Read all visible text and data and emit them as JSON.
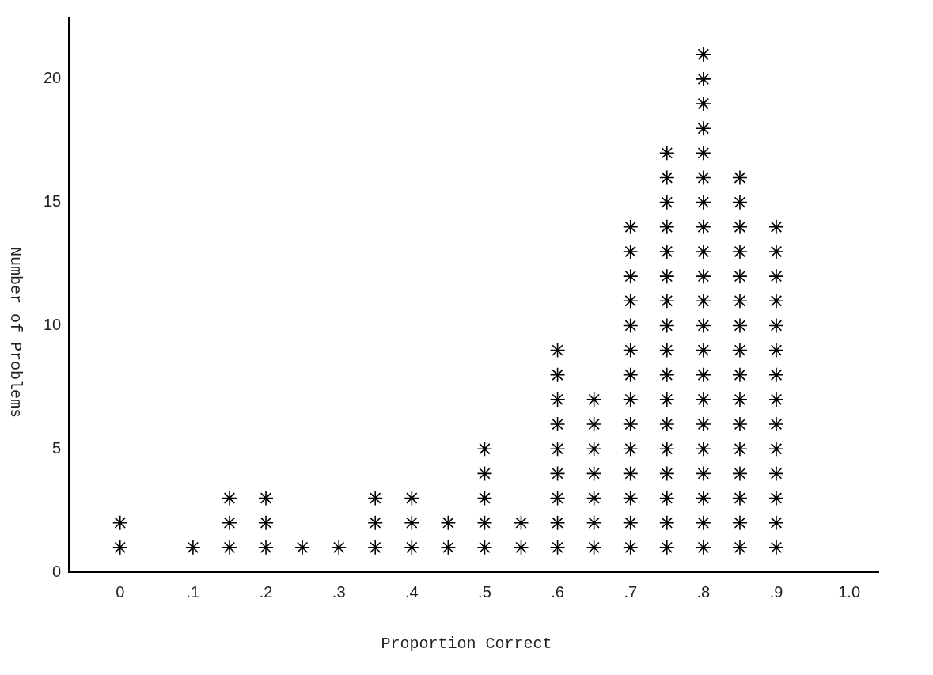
{
  "chart_data": {
    "type": "scatter",
    "xlabel": "Proportion Correct",
    "ylabel": "Number of Problems",
    "x": [
      0,
      0,
      0.1,
      0.15,
      0.15,
      0.15,
      0.2,
      0.2,
      0.2,
      0.25,
      0.3,
      0.35,
      0.35,
      0.35,
      0.4,
      0.4,
      0.4,
      0.45,
      0.45,
      0.5,
      0.5,
      0.5,
      0.5,
      0.5,
      0.55,
      0.55,
      0.6,
      0.6,
      0.6,
      0.6,
      0.6,
      0.6,
      0.6,
      0.6,
      0.6,
      0.65,
      0.65,
      0.65,
      0.65,
      0.65,
      0.65,
      0.65,
      0.7,
      0.7,
      0.7,
      0.7,
      0.7,
      0.7,
      0.7,
      0.7,
      0.7,
      0.7,
      0.7,
      0.7,
      0.7,
      0.7,
      0.75,
      0.75,
      0.75,
      0.75,
      0.75,
      0.75,
      0.75,
      0.75,
      0.75,
      0.75,
      0.75,
      0.75,
      0.75,
      0.75,
      0.75,
      0.75,
      0.75,
      0.8,
      0.8,
      0.8,
      0.8,
      0.8,
      0.8,
      0.8,
      0.8,
      0.8,
      0.8,
      0.8,
      0.8,
      0.8,
      0.8,
      0.8,
      0.8,
      0.8,
      0.8,
      0.8,
      0.8,
      0.8,
      0.85,
      0.85,
      0.85,
      0.85,
      0.85,
      0.85,
      0.85,
      0.85,
      0.85,
      0.85,
      0.85,
      0.85,
      0.85,
      0.85,
      0.85,
      0.85,
      0.9,
      0.9,
      0.9,
      0.9,
      0.9,
      0.9,
      0.9,
      0.9,
      0.9,
      0.9,
      0.9,
      0.9,
      0.9,
      0.9
    ],
    "values": [
      1,
      2,
      1,
      1,
      2,
      3,
      1,
      2,
      3,
      1,
      1,
      1,
      2,
      3,
      1,
      2,
      3,
      1,
      2,
      1,
      2,
      3,
      4,
      5,
      1,
      2,
      1,
      2,
      3,
      4,
      5,
      6,
      7,
      8,
      9,
      1,
      2,
      3,
      4,
      5,
      6,
      7,
      1,
      2,
      3,
      4,
      5,
      6,
      7,
      8,
      9,
      10,
      11,
      12,
      13,
      14,
      1,
      2,
      3,
      4,
      5,
      6,
      7,
      8,
      9,
      10,
      11,
      12,
      13,
      14,
      15,
      16,
      17,
      1,
      2,
      3,
      4,
      5,
      6,
      7,
      8,
      9,
      10,
      11,
      12,
      13,
      14,
      15,
      16,
      17,
      18,
      19,
      20,
      21,
      1,
      2,
      3,
      4,
      5,
      6,
      7,
      8,
      9,
      10,
      11,
      12,
      13,
      14,
      15,
      16,
      1,
      2,
      3,
      4,
      5,
      6,
      7,
      8,
      9,
      10,
      11,
      12,
      13,
      14
    ],
    "color": "#000000",
    "marker": "cross",
    "xlim": [
      -0.07,
      1.04
    ],
    "xticks": [
      {
        "value": 0,
        "label": "0"
      },
      {
        "value": 0.1,
        "label": ".1"
      },
      {
        "value": 0.2,
        "label": ".2"
      },
      {
        "value": 0.3,
        "label": ".3"
      },
      {
        "value": 0.4,
        "label": ".4"
      },
      {
        "value": 0.5,
        "label": ".5"
      },
      {
        "value": 0.6,
        "label": ".6"
      },
      {
        "value": 0.7,
        "label": ".7"
      },
      {
        "value": 0.8,
        "label": ".8"
      },
      {
        "value": 0.9,
        "label": ".9"
      },
      {
        "value": 1.0,
        "label": "1.0"
      }
    ],
    "ylim": [
      0,
      22.5
    ],
    "yticks": [
      0,
      5,
      10,
      15,
      20
    ],
    "grid": false,
    "legend": false
  }
}
